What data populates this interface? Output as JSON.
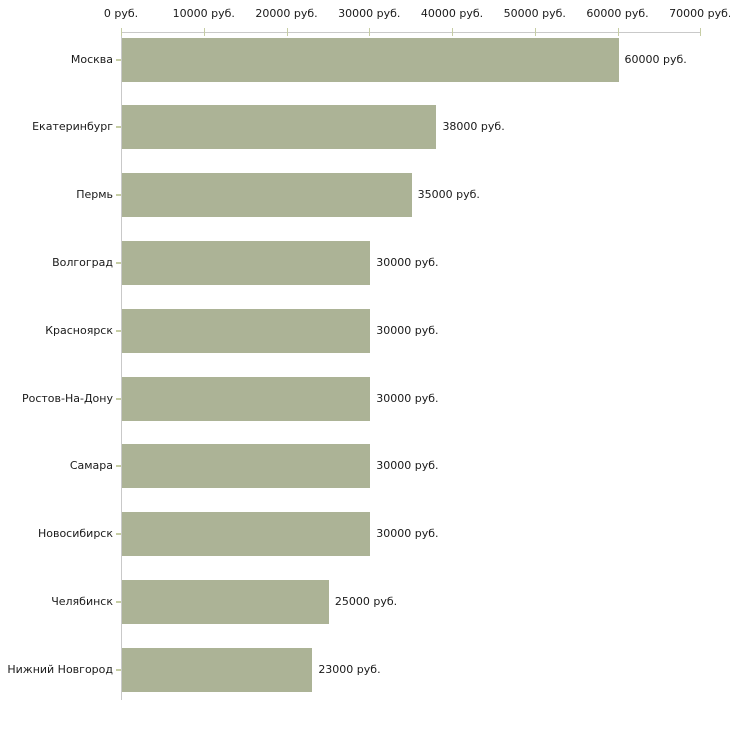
{
  "chart_data": {
    "type": "bar",
    "orientation": "horizontal",
    "title": "",
    "xlabel": "",
    "ylabel": "",
    "unit": "руб.",
    "categories": [
      "Москва",
      "Екатеринбург",
      "Пермь",
      "Волгоград",
      "Красноярск",
      "Ростов-На-Дону",
      "Самара",
      "Новосибирск",
      "Челябинск",
      "Нижний Новгород"
    ],
    "values": [
      60000,
      38000,
      35000,
      30000,
      30000,
      30000,
      30000,
      30000,
      25000,
      23000
    ],
    "value_labels": [
      "60000 руб.",
      "38000 руб.",
      "35000 руб.",
      "30000 руб.",
      "30000 руб.",
      "30000 руб.",
      "30000 руб.",
      "30000 руб.",
      "25000 руб.",
      "23000 руб."
    ],
    "x_ticks": [
      0,
      10000,
      20000,
      30000,
      40000,
      50000,
      60000,
      70000
    ],
    "x_tick_labels": [
      "0 руб.",
      "10000 руб.",
      "20000 руб.",
      "30000 руб.",
      "40000 руб.",
      "50000 руб.",
      "60000 руб.",
      "70000 руб."
    ],
    "xlim": [
      0,
      70000
    ],
    "x_axis_position": "top",
    "grid": false,
    "legend": false,
    "colors": {
      "bar_fill": "#acb396",
      "axis_line": "#c9c9c9",
      "tick_mark": "#c6cda4",
      "text": "#1a1a1a",
      "background": "#ffffff"
    }
  }
}
